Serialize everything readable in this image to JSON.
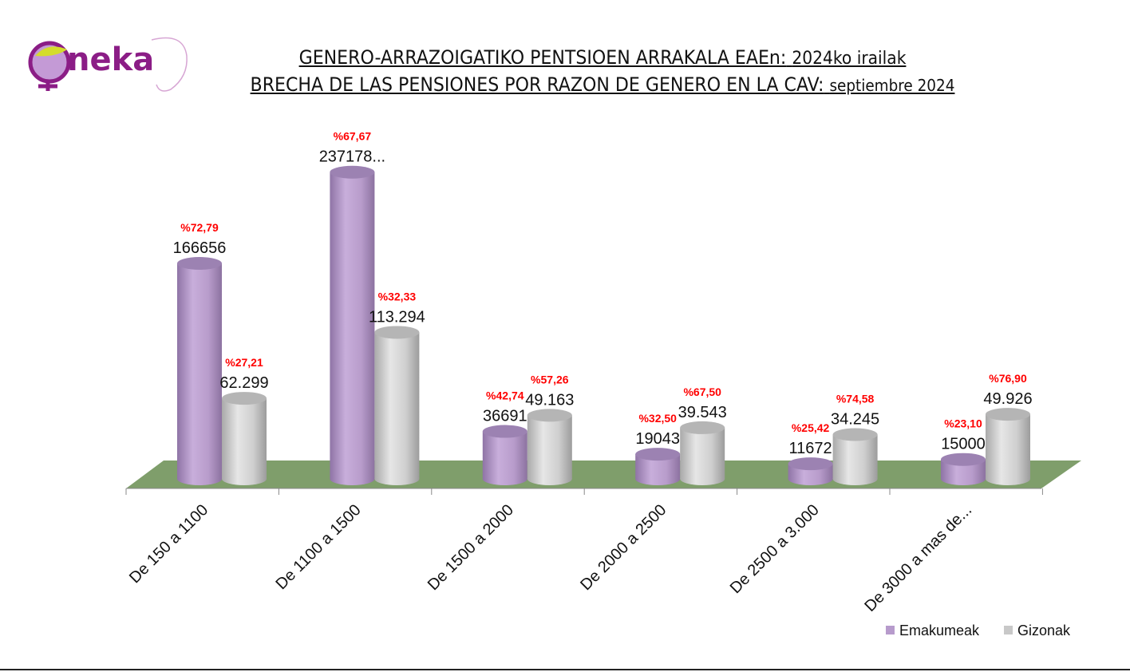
{
  "logo": {
    "text": "oneka"
  },
  "title": {
    "line1_main": "GENERO-ARRAZOIGATIKO PENTSIOEN ARRAKALA EAEn:",
    "line1_date": "2024ko irailak",
    "line2_main": "BRECHA DE LAS PENSIONES POR RAZON DE GENERO EN LA CAV:",
    "line2_date": "septiembre 2024"
  },
  "chart_data": {
    "type": "bar",
    "style": "3d-cylinder",
    "categories": [
      "De 150 a 1100",
      "De 1100 a 1500",
      "De 1500 a 2000",
      "De 2000 a 2500",
      "De 2500 a 3.000",
      "De 3000 a mas de..."
    ],
    "series": [
      {
        "name": "Emakumeak",
        "color": "#b79bcc",
        "values": [
          166656,
          237178,
          36691,
          19043,
          11672,
          15000
        ],
        "labels": [
          "166656",
          "237178...",
          "36691",
          "19043",
          "11672",
          "15000"
        ],
        "pct_labels": [
          "%72,79",
          "%67,67",
          "%42,74",
          "%32,50",
          "%25,42",
          "%23,10"
        ]
      },
      {
        "name": "Gizonak",
        "color": "#c8c8c8",
        "values": [
          62299,
          113294,
          49163,
          39543,
          34245,
          49926
        ],
        "labels": [
          "62.299",
          "113.294",
          "49.163",
          "39.543",
          "34.245",
          "49.926"
        ],
        "pct_labels": [
          "%27,21",
          "%32,33",
          "%57,26",
          "%67,50",
          "%74,58",
          "%76,90"
        ]
      }
    ],
    "ylim": [
      0,
      250000
    ],
    "legend": "bottom-right",
    "floor_color": "#7f9e6b",
    "pct_color": "#ff0000"
  }
}
